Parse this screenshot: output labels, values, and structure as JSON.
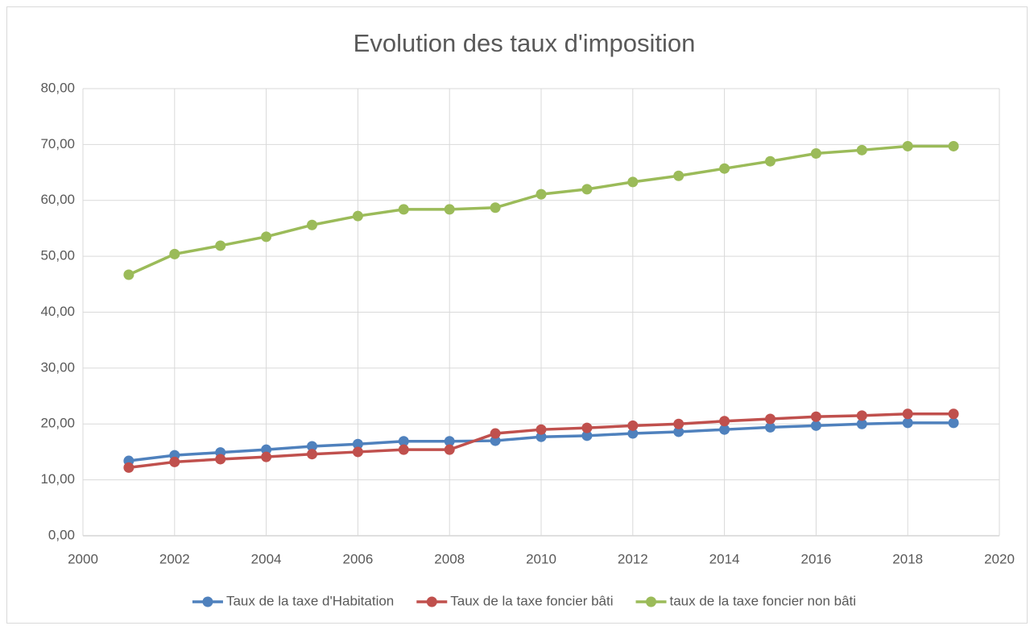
{
  "chart_data": {
    "type": "line",
    "title": "Evolution des taux d'imposition",
    "x": [
      2001,
      2002,
      2003,
      2004,
      2005,
      2006,
      2007,
      2008,
      2009,
      2010,
      2011,
      2012,
      2013,
      2014,
      2015,
      2016,
      2017,
      2018,
      2019
    ],
    "series": [
      {
        "name": "Taux de la taxe d'Habitation",
        "color": "#4f81bd",
        "values": [
          13.4,
          14.4,
          14.9,
          15.4,
          16.0,
          16.4,
          16.9,
          16.9,
          17.0,
          17.7,
          17.9,
          18.3,
          18.6,
          19.0,
          19.4,
          19.7,
          20.0,
          20.2,
          20.2
        ]
      },
      {
        "name": "Taux de la taxe foncier bâti",
        "color": "#c0504d",
        "values": [
          12.2,
          13.2,
          13.7,
          14.1,
          14.6,
          15.0,
          15.4,
          15.4,
          18.3,
          19.0,
          19.3,
          19.7,
          20.0,
          20.5,
          20.9,
          21.3,
          21.5,
          21.8,
          21.8
        ]
      },
      {
        "name": "taux de la taxe foncier non bâti",
        "color": "#9bbb59",
        "values": [
          46.7,
          50.4,
          51.9,
          53.5,
          55.6,
          57.2,
          58.4,
          58.4,
          58.7,
          61.1,
          62.0,
          63.3,
          64.4,
          65.7,
          67.0,
          68.4,
          69.0,
          69.7,
          69.7
        ]
      }
    ],
    "xlim": [
      2000,
      2020
    ],
    "xticks": [
      2000,
      2002,
      2004,
      2006,
      2008,
      2010,
      2012,
      2014,
      2016,
      2018,
      2020
    ],
    "ylim": [
      0,
      80
    ],
    "yticks": [
      {
        "value": 0,
        "label": "0,00"
      },
      {
        "value": 10,
        "label": "10,00"
      },
      {
        "value": 20,
        "label": "20,00"
      },
      {
        "value": 30,
        "label": "30,00"
      },
      {
        "value": 40,
        "label": "40,00"
      },
      {
        "value": 50,
        "label": "50,00"
      },
      {
        "value": 60,
        "label": "60,00"
      },
      {
        "value": 70,
        "label": "70,00"
      },
      {
        "value": 80,
        "label": "80,00"
      }
    ],
    "grid": true,
    "legend": "bottom"
  }
}
